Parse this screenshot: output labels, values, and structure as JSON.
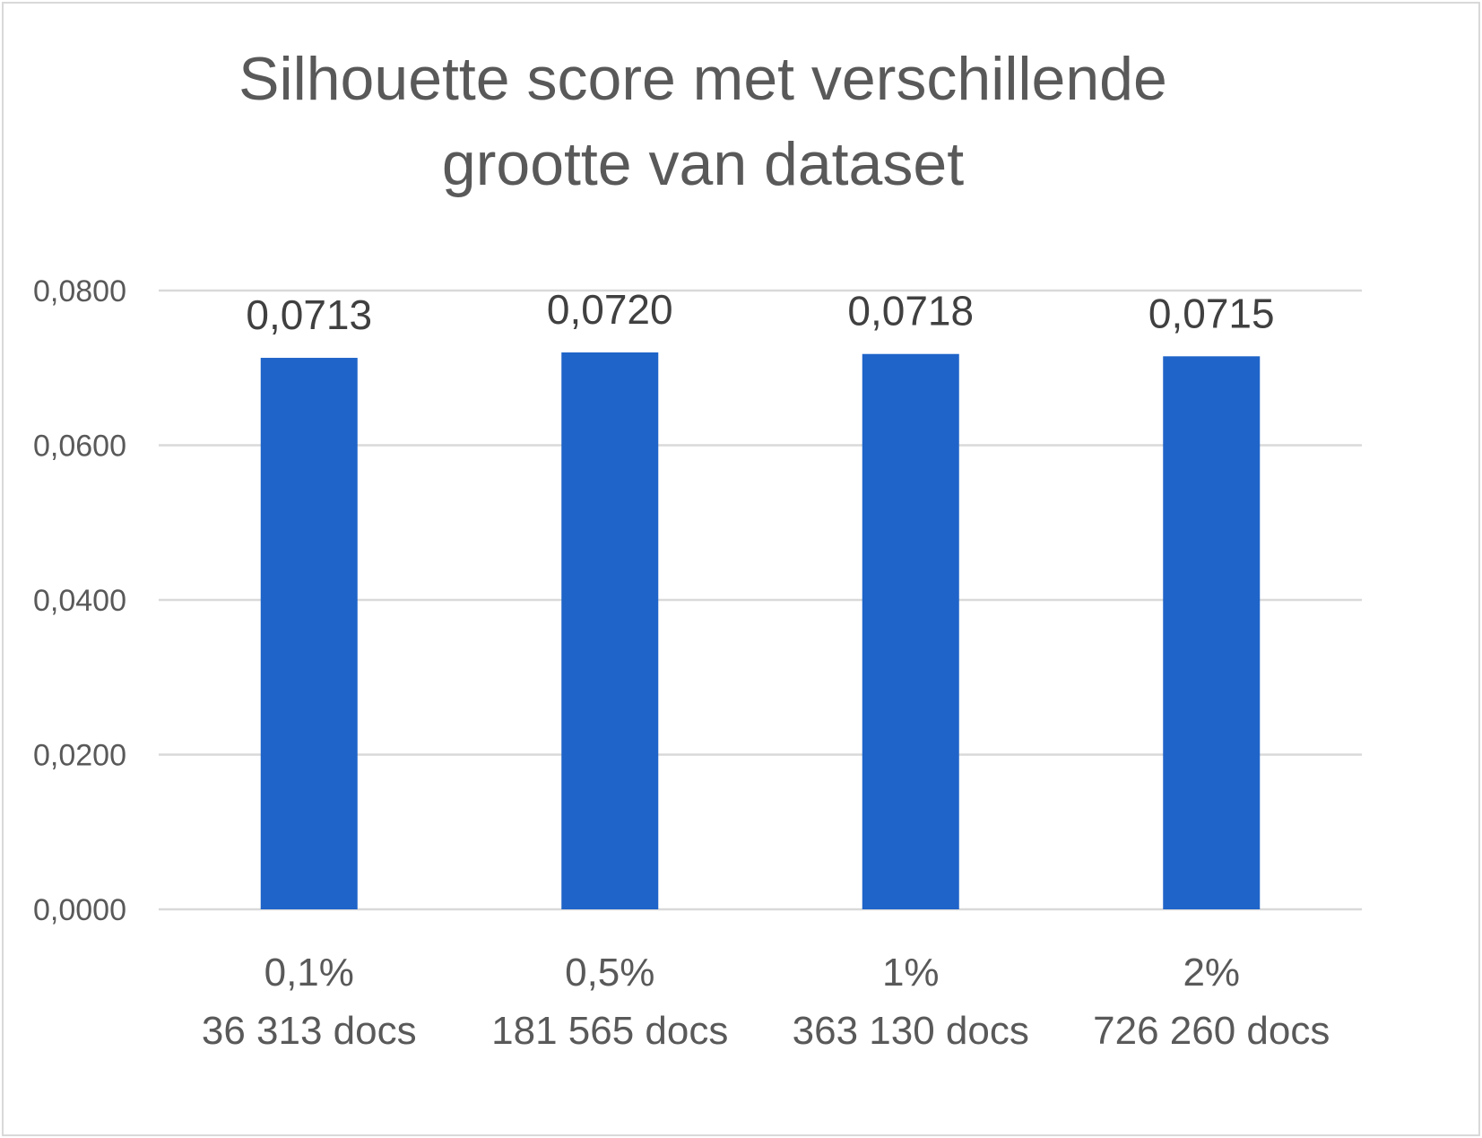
{
  "chart_data": {
    "type": "bar",
    "title": "Silhouette score met verschillende grootte van dataset",
    "title_lines": [
      "Silhouette score met verschillende",
      "grootte van dataset"
    ],
    "categories": [
      [
        "0,1%",
        "36 313 docs"
      ],
      [
        "0,5%",
        "181 565 docs"
      ],
      [
        "1%",
        "363 130 docs"
      ],
      [
        "2%",
        "726 260 docs"
      ]
    ],
    "values": [
      0.0713,
      0.072,
      0.0718,
      0.0715
    ],
    "data_labels": [
      "0,0713",
      "0,0720",
      "0,0718",
      "0,0715"
    ],
    "yticks": [
      0,
      0.02,
      0.04,
      0.06,
      0.08
    ],
    "ytick_labels": [
      "0,0000",
      "0,0200",
      "0,0400",
      "0,0600",
      "0,0800"
    ],
    "ylim": [
      0,
      0.08
    ],
    "xlabel": "",
    "ylabel": "",
    "grid": true,
    "legend": "none",
    "colors": {
      "bar": "#1f64c8",
      "grid": "#d9d9d9",
      "title": "#595959",
      "tick": "#595959",
      "data_label": "#404040",
      "frame": "#d9d9d9"
    }
  }
}
